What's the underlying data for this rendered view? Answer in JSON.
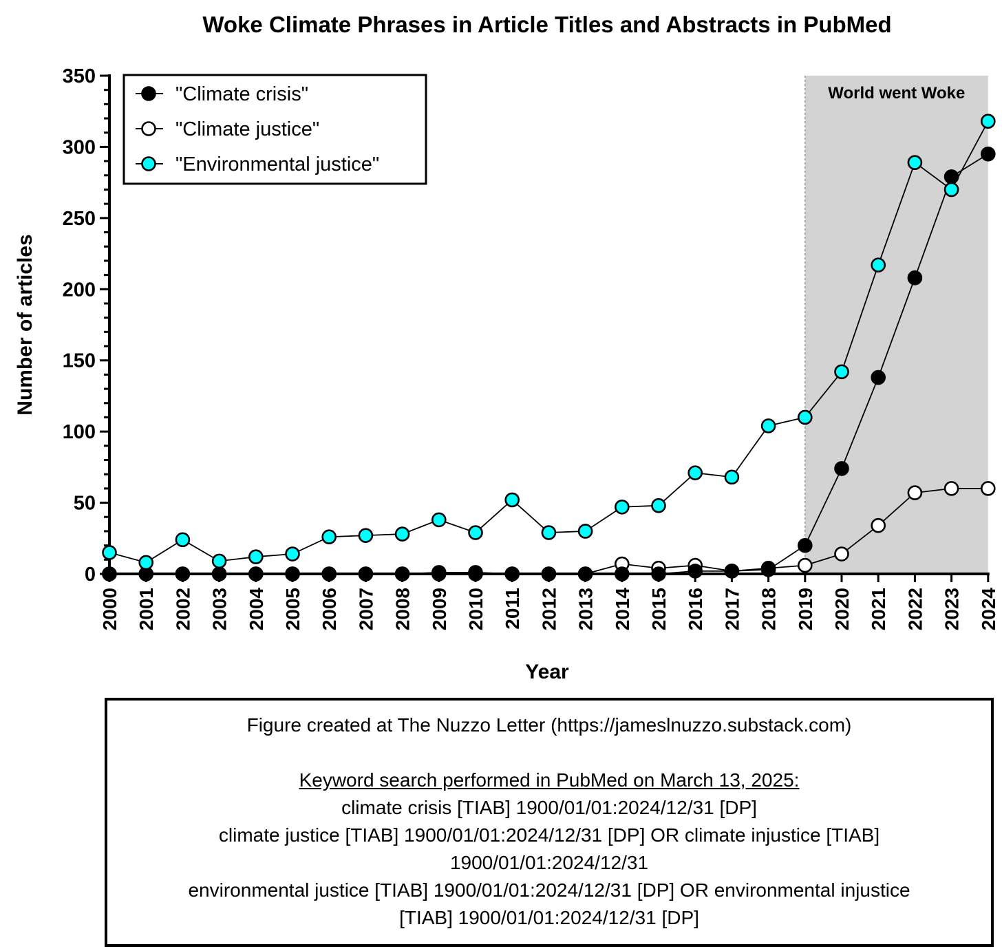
{
  "chart_data": {
    "type": "line",
    "title": "Woke Climate Phrases in Article Titles and Abstracts in PubMed",
    "xlabel": "Year",
    "ylabel": "Number of articles",
    "x": [
      "2000",
      "2001",
      "2002",
      "2003",
      "2004",
      "2005",
      "2006",
      "2007",
      "2008",
      "2009",
      "2010",
      "2011",
      "2012",
      "2013",
      "2014",
      "2015",
      "2016",
      "2017",
      "2018",
      "2019",
      "2020",
      "2021",
      "2022",
      "2023",
      "2024"
    ],
    "ylim": [
      0,
      350
    ],
    "yticks": [
      0,
      50,
      100,
      150,
      200,
      250,
      300,
      350
    ],
    "legend_position": "top-left",
    "series": [
      {
        "name": "\"Climate crisis\"",
        "marker": "filled-black",
        "values": [
          0,
          0,
          0,
          0,
          0,
          0,
          0,
          0,
          0,
          1,
          1,
          0,
          0,
          0,
          0,
          0,
          2,
          2,
          3,
          20,
          74,
          138,
          208,
          279,
          295
        ]
      },
      {
        "name": "\"Climate justice\"",
        "marker": "open-white",
        "values": [
          0,
          0,
          0,
          0,
          0,
          0,
          0,
          0,
          0,
          0,
          0,
          0,
          0,
          0,
          7,
          4,
          6,
          2,
          4,
          6,
          14,
          34,
          57,
          60,
          60
        ]
      },
      {
        "name": "\"Environmental justice\"",
        "marker": "cyan",
        "values": [
          15,
          8,
          24,
          9,
          12,
          14,
          26,
          27,
          28,
          38,
          29,
          52,
          29,
          30,
          47,
          48,
          71,
          68,
          104,
          110,
          142,
          217,
          289,
          270,
          318
        ]
      }
    ],
    "shaded_region": {
      "from": "2019",
      "to": "2024",
      "label": "World went Woke"
    },
    "colors": {
      "shade": "#d3d3d3",
      "cyan": "#00ffff",
      "line": "#000000"
    }
  },
  "notes": {
    "credit": "Figure created at The Nuzzo Letter (https://jameslnuzzo.substack.com)",
    "heading": "Keyword search performed in PubMed on March 13, 2025:",
    "lines": [
      "climate crisis [TIAB] 1900/01/01:2024/12/31 [DP]",
      "climate justice [TIAB] 1900/01/01:2024/12/31 [DP] OR climate injustice [TIAB]",
      "1900/01/01:2024/12/31",
      "environmental justice [TIAB] 1900/01/01:2024/12/31 [DP] OR environmental injustice",
      "[TIAB] 1900/01/01:2024/12/31 [DP]"
    ]
  }
}
